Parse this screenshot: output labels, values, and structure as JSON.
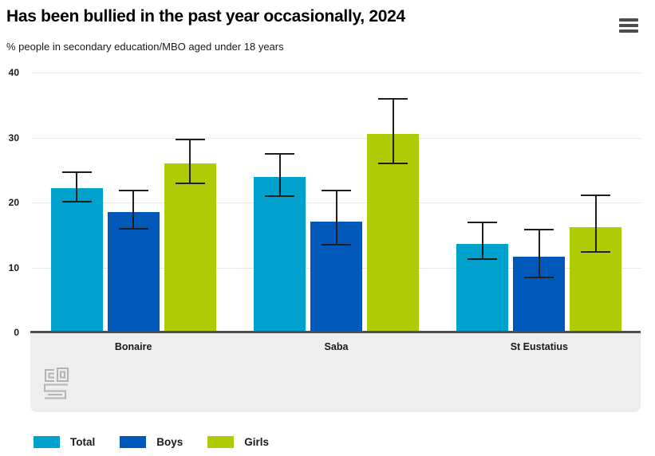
{
  "header": {
    "title": "Has been bullied in the past year occasionally, 2024",
    "subtitle": "% people in secondary education/MBO aged under 18 years",
    "menu_icon": "hamburger-menu-icon"
  },
  "colors": {
    "series_total": "#00a1cd",
    "series_boys": "#0058b8",
    "series_girls": "#afcb05",
    "axis_line": "#4d4d4d",
    "gridline": "#e8e8e8",
    "error_bar": "#1f1f1f",
    "footer_band": "#eeeeee",
    "logo_gray": "#b3b3b3",
    "text": "#1a1a1a"
  },
  "footer": {
    "logo_icon": "cbs-logo"
  },
  "chart_data": {
    "type": "bar",
    "title": "Has been bullied in the past year occasionally, 2024",
    "subtitle": "% people in secondary education/MBO aged under 18 years",
    "categories": [
      "Bonaire",
      "Saba",
      "St Eustatius"
    ],
    "series": [
      {
        "name": "Total",
        "color": "#00a1cd",
        "values": [
          22.2,
          23.9,
          13.6
        ],
        "ci_low": [
          20.1,
          21.0,
          11.3
        ],
        "ci_high": [
          24.7,
          27.5,
          16.9
        ]
      },
      {
        "name": "Boys",
        "color": "#0058b8",
        "values": [
          18.5,
          17.0,
          11.6
        ],
        "ci_low": [
          15.9,
          13.5,
          8.5
        ],
        "ci_high": [
          21.9,
          21.9,
          15.8
        ]
      },
      {
        "name": "Girls",
        "color": "#afcb05",
        "values": [
          26.0,
          30.5,
          16.2
        ],
        "ci_low": [
          23.0,
          26.0,
          12.4
        ],
        "ci_high": [
          29.7,
          36.0,
          21.1
        ]
      }
    ],
    "xlabel": "",
    "ylabel": "",
    "ylim": [
      0,
      40
    ],
    "yticks": [
      0,
      10,
      20,
      30,
      40
    ],
    "grid": true,
    "error_bars": true,
    "legend_position": "bottom",
    "legend": [
      "Total",
      "Boys",
      "Girls"
    ]
  }
}
